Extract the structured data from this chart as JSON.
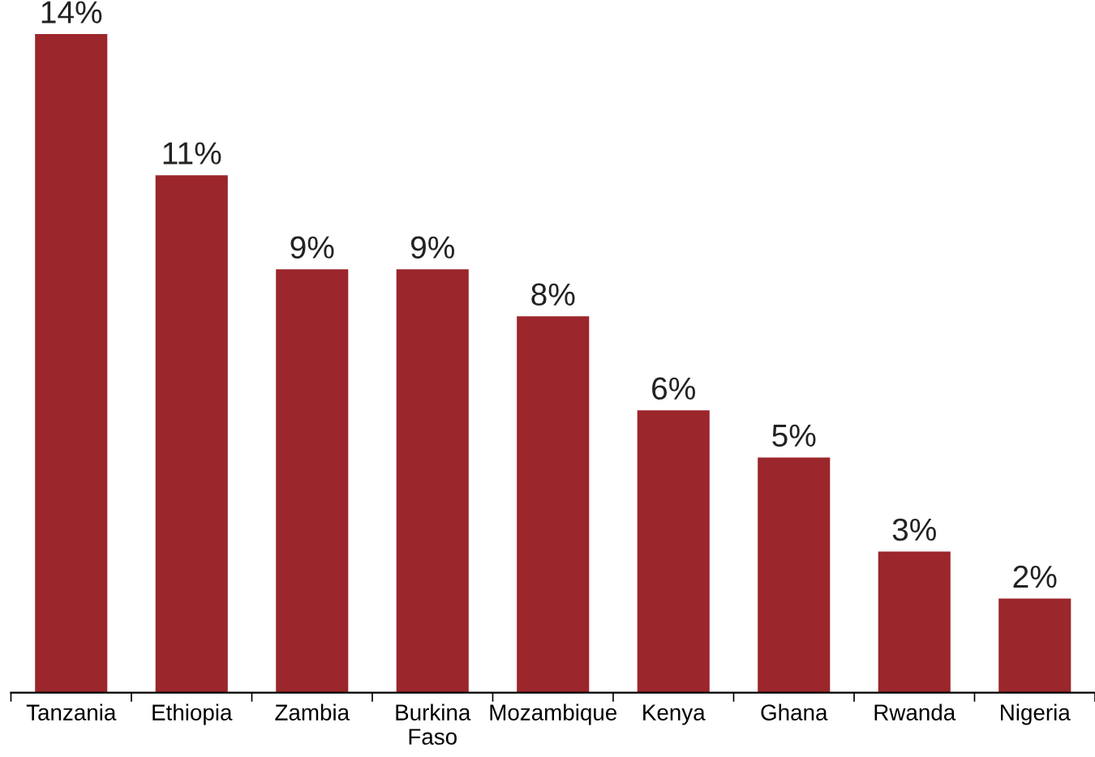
{
  "chart_data": {
    "type": "bar",
    "categories": [
      "Tanzania",
      "Ethiopia",
      "Zambia",
      "Burkina\nFaso",
      "Mozambique",
      "Kenya",
      "Ghana",
      "Rwanda",
      "Nigeria"
    ],
    "values": [
      14,
      11,
      9,
      9,
      8,
      6,
      5,
      3,
      2
    ],
    "value_labels": [
      "14%",
      "11%",
      "9%",
      "9%",
      "8%",
      "6%",
      "5%",
      "3%",
      "2%"
    ],
    "color": "#9b262b",
    "grid": false,
    "legend": false
  }
}
